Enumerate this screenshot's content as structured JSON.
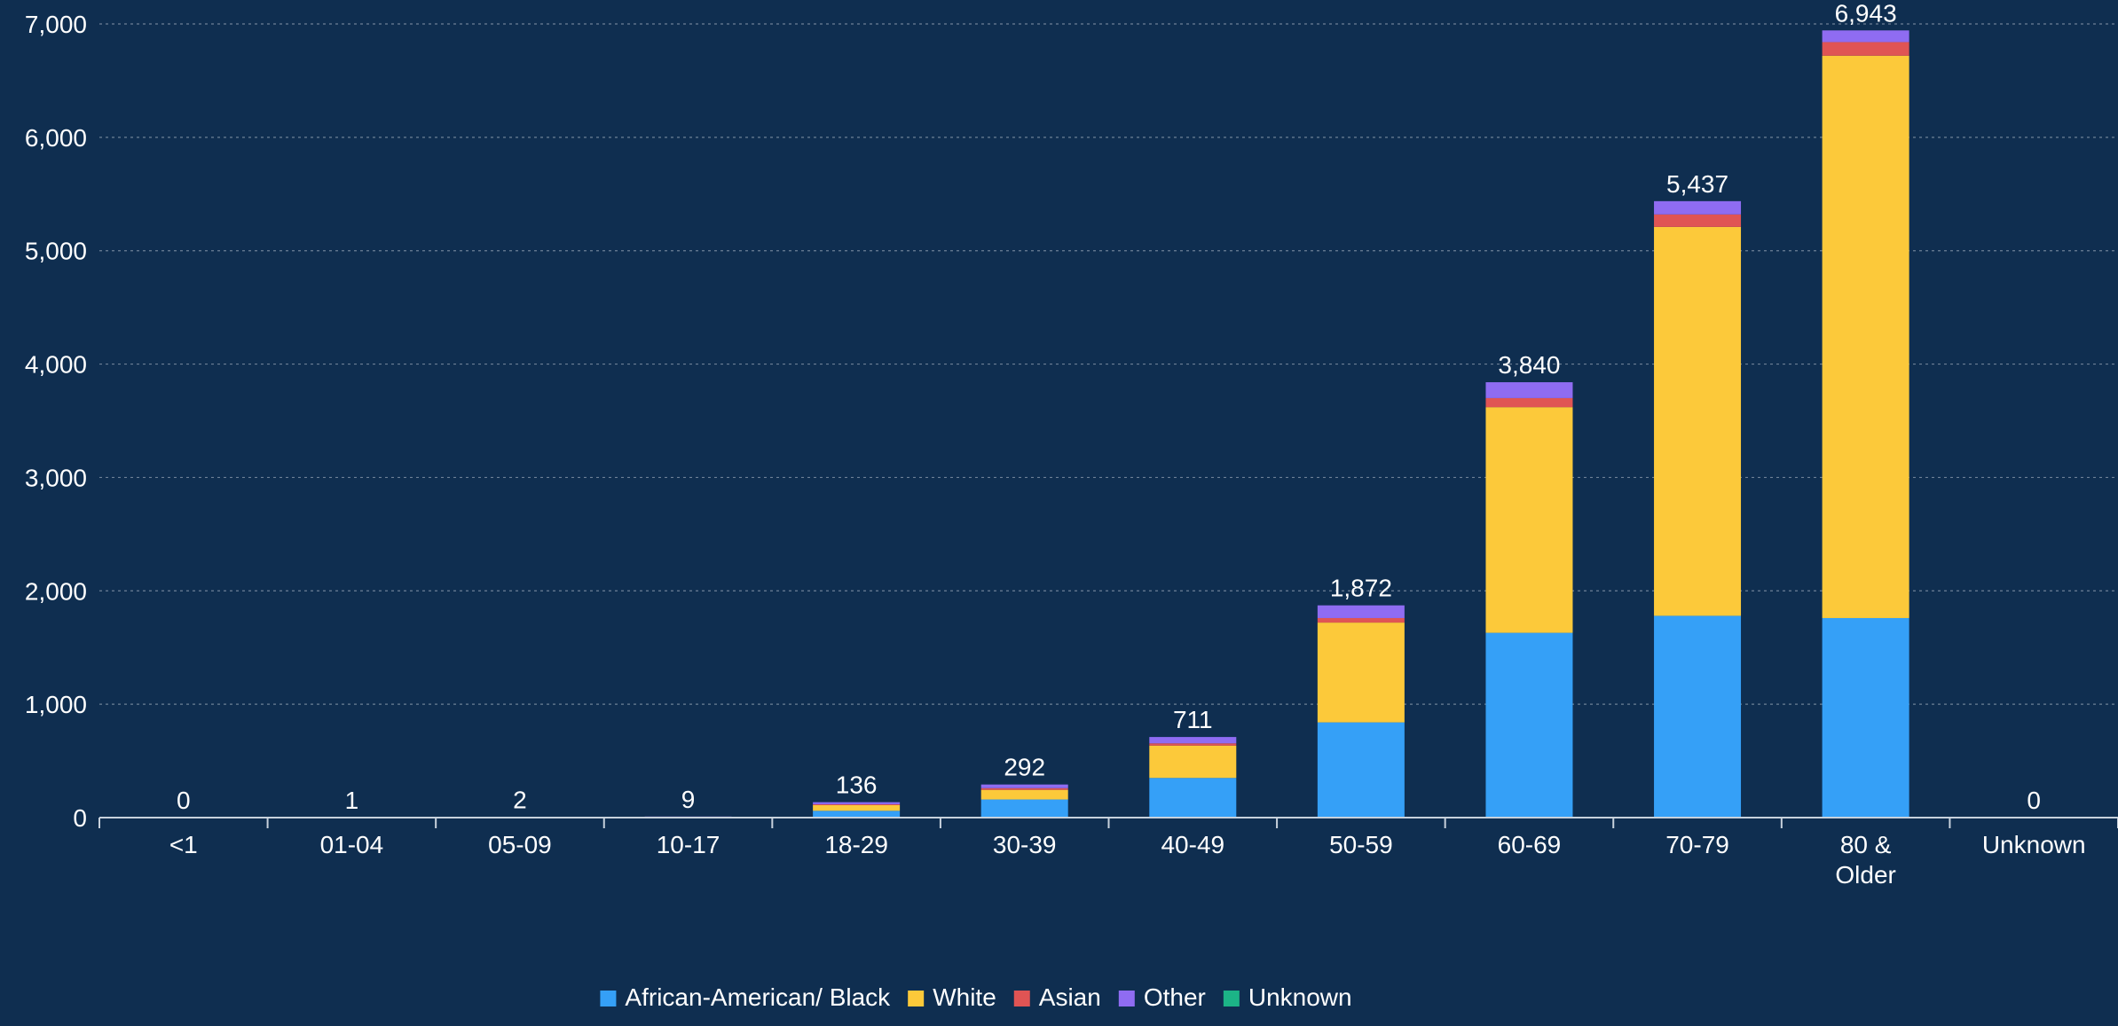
{
  "chart_data": {
    "type": "bar",
    "stacked": true,
    "categories": [
      "<1",
      "01-04",
      "05-09",
      "10-17",
      "18-29",
      "30-39",
      "40-49",
      "50-59",
      "60-69",
      "70-79",
      "80 & Older",
      "Unknown"
    ],
    "totals": [
      0,
      1,
      2,
      9,
      136,
      292,
      711,
      1872,
      3840,
      5437,
      6943,
      0
    ],
    "total_labels": [
      "0",
      "1",
      "2",
      "9",
      "136",
      "292",
      "711",
      "1,872",
      "3,840",
      "5,437",
      "6,943",
      "0"
    ],
    "series": [
      {
        "name": "African-American/ Black",
        "color": "#35a0f7",
        "values": [
          0,
          0,
          1,
          3,
          60,
          160,
          350,
          840,
          1630,
          1780,
          1760,
          0
        ]
      },
      {
        "name": "White",
        "color": "#fcc93a",
        "values": [
          0,
          1,
          1,
          5,
          50,
          85,
          285,
          880,
          1990,
          3430,
          4960,
          0
        ]
      },
      {
        "name": "Asian",
        "color": "#e05454",
        "values": [
          0,
          0,
          0,
          0,
          8,
          15,
          20,
          40,
          80,
          110,
          120,
          0
        ]
      },
      {
        "name": "Other",
        "color": "#8f6cf2",
        "values": [
          0,
          0,
          0,
          1,
          18,
          32,
          56,
          112,
          140,
          117,
          103,
          0
        ]
      },
      {
        "name": "Unknown",
        "color": "#1cb487",
        "values": [
          0,
          0,
          0,
          0,
          0,
          0,
          0,
          0,
          0,
          0,
          0,
          0
        ]
      }
    ],
    "yticks": [
      0,
      1000,
      2000,
      3000,
      4000,
      5000,
      6000,
      7000
    ],
    "ytick_labels": [
      "0",
      "1,000",
      "2,000",
      "3,000",
      "4,000",
      "5,000",
      "6,000",
      "7,000"
    ],
    "ylim": [
      0,
      7000
    ],
    "title": "",
    "xlabel": "",
    "ylabel": "",
    "grid": true,
    "legend_position": "bottom-center"
  }
}
